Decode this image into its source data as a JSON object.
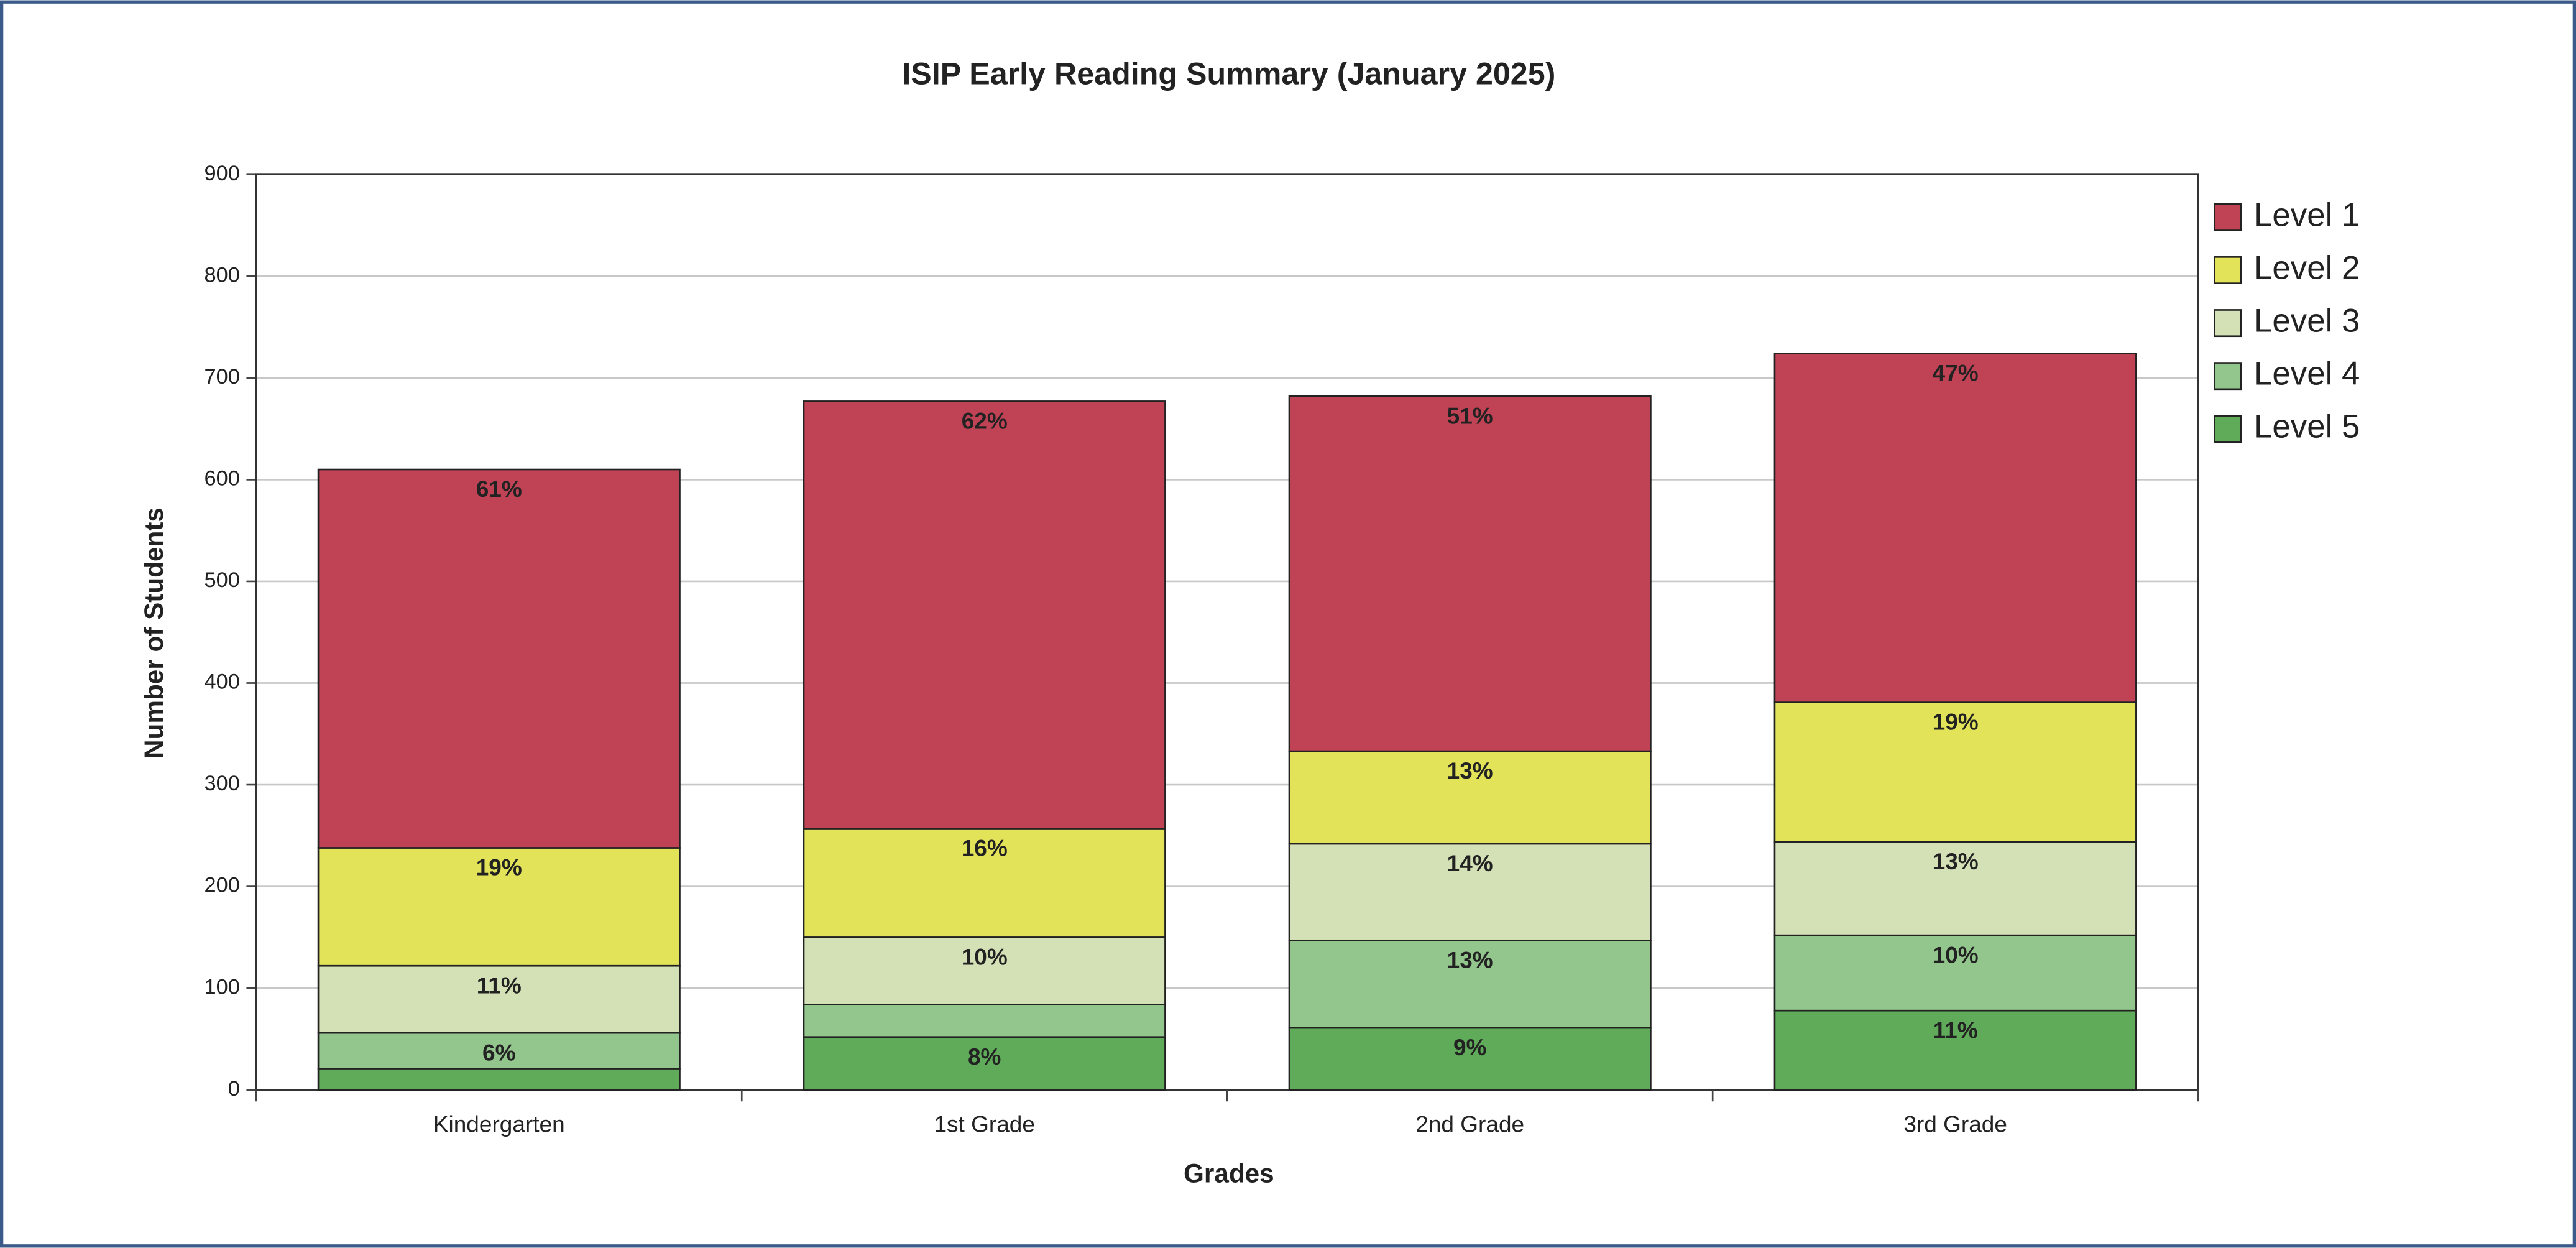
{
  "chart_data": {
    "type": "stacked_bar",
    "title": "ISIP Early Reading Summary (January 2025)",
    "x_label": "Grades",
    "y_label": "Number of Students",
    "categories": [
      "Kindergarten",
      "1st Grade",
      "2nd Grade",
      "3rd Grade"
    ],
    "series": [
      {
        "name": "Level 1",
        "color": "#c04255",
        "values": [
          372,
          420,
          349,
          343
        ],
        "value_labels": [
          "61%",
          "62%",
          "51%",
          "47%"
        ]
      },
      {
        "name": "Level 2",
        "color": "#e3e35a",
        "values": [
          116,
          107,
          91,
          137
        ],
        "value_labels": [
          "19%",
          "16%",
          "13%",
          "19%"
        ]
      },
      {
        "name": "Level 3",
        "color": "#d4e0b5",
        "values": [
          66,
          66,
          95,
          92
        ],
        "value_labels": [
          "11%",
          "10%",
          "14%",
          "13%"
        ]
      },
      {
        "name": "Level 4",
        "color": "#93c68d",
        "values": [
          35,
          32,
          86,
          74
        ],
        "value_labels": [
          "6%",
          null,
          "13%",
          "10%"
        ]
      },
      {
        "name": "Level 5",
        "color": "#5fab5a",
        "values": [
          21,
          52,
          61,
          78
        ],
        "value_labels": [
          null,
          "8%",
          "9%",
          "11%"
        ]
      }
    ],
    "ylim": [
      0,
      900
    ],
    "yticks": [
      0,
      100,
      200,
      300,
      400,
      500,
      600,
      700,
      800,
      900
    ],
    "grid": true,
    "legend": "right"
  }
}
